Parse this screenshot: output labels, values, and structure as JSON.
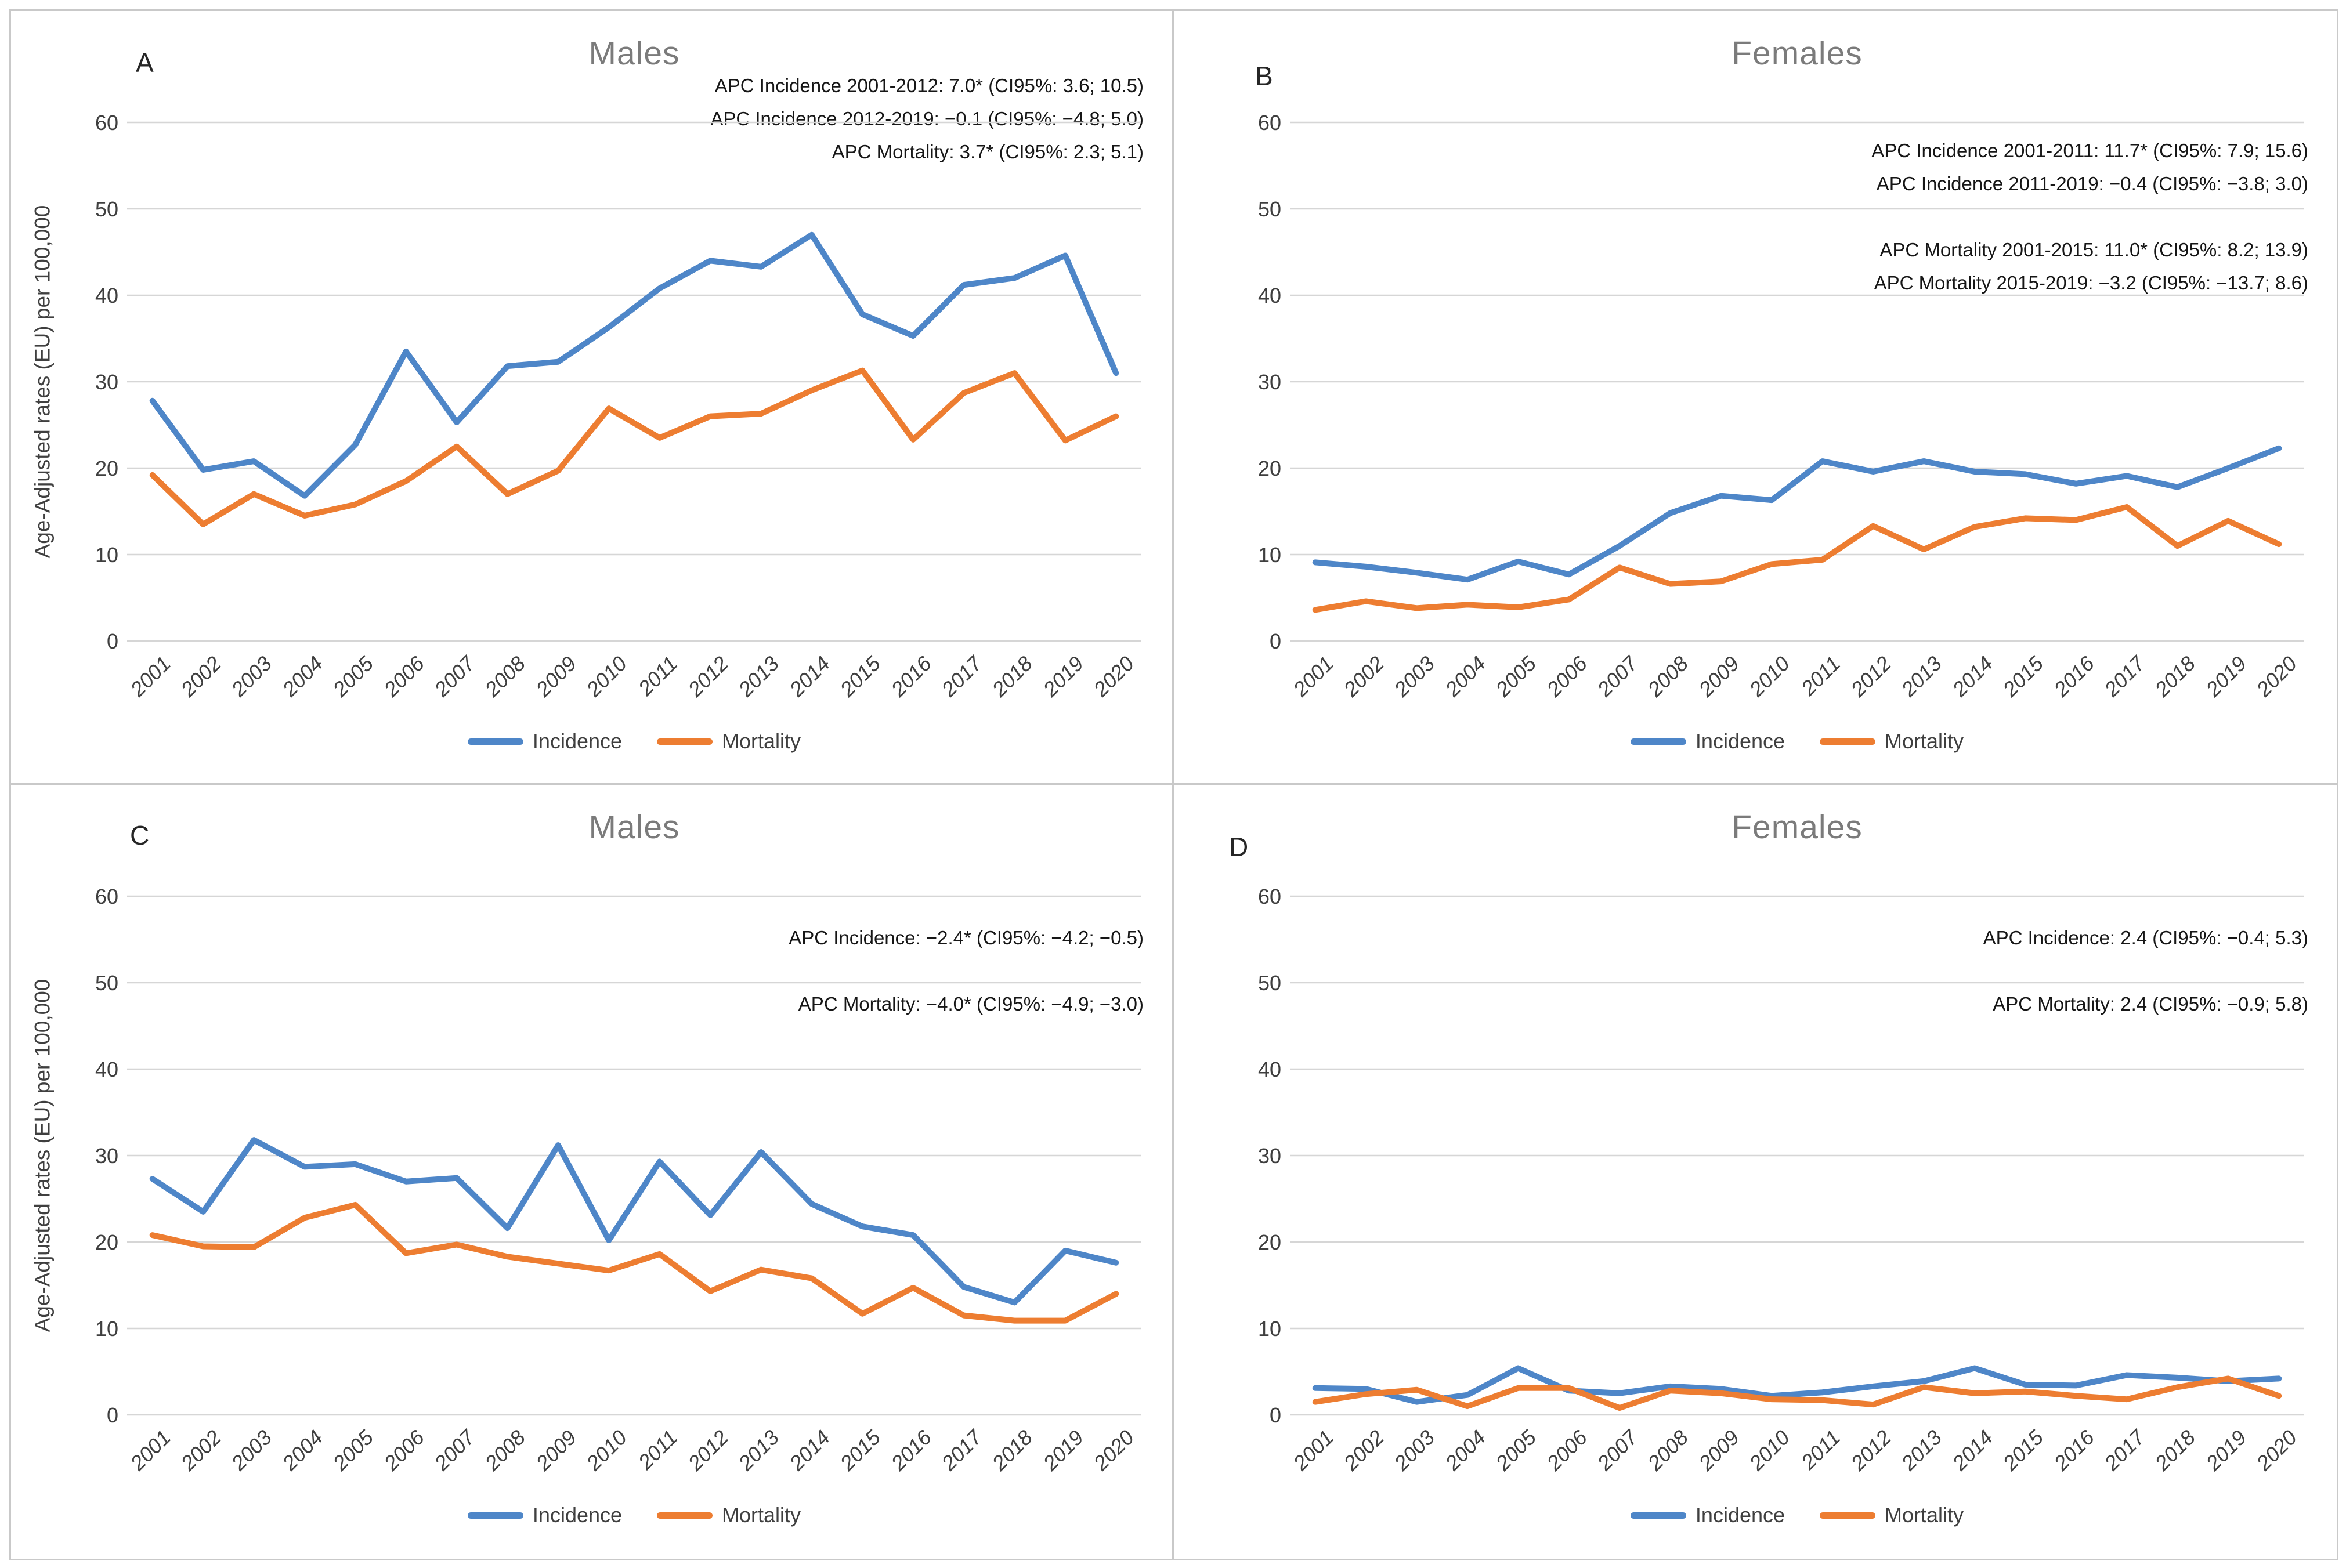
{
  "figure": {
    "y_axis_label": "Age-Adjusted rates (EU) per 100,000",
    "legend": {
      "incidence_label": "Incidence",
      "mortality_label": "Mortality"
    },
    "colors": {
      "incidence": "#4e86c8",
      "mortality": "#ed7d31",
      "gridline": "#d6d6d6",
      "panel_border": "#c9c9c9",
      "title_text": "#7b7b7b",
      "axis_text": "#3f3f3f",
      "annotation_text": "#161616"
    }
  },
  "chart_data": [
    {
      "panel": "A",
      "title": "Males",
      "type": "line",
      "grid": "horizontal",
      "legend_position": "bottom",
      "show_y_axis_title": true,
      "ylim": [
        0,
        60
      ],
      "yticks": [
        0,
        10,
        20,
        30,
        40,
        50,
        60
      ],
      "categories": [
        "2001",
        "2002",
        "2003",
        "2004",
        "2005",
        "2006",
        "2007",
        "2008",
        "2009",
        "2010",
        "2011",
        "2012",
        "2013",
        "2014",
        "2015",
        "2016",
        "2017",
        "2018",
        "2019",
        "2020"
      ],
      "annotations": [
        "APC Incidence 2001-2012: 7.0* (CI95%: 3.6; 10.5)",
        "APC Incidence 2012-2019: −0.1 (CI95%: −4.8; 5.0)",
        "APC Mortality: 3.7* (CI95%: 2.3; 5.1)"
      ],
      "series": [
        {
          "name": "Incidence",
          "color_key": "incidence",
          "values": [
            27.8,
            19.8,
            20.8,
            16.8,
            22.7,
            33.5,
            25.3,
            31.8,
            32.3,
            36.3,
            40.8,
            44.0,
            43.3,
            47.0,
            37.8,
            35.3,
            41.2,
            42.0,
            44.6,
            31.0
          ]
        },
        {
          "name": "Mortality",
          "color_key": "mortality",
          "values": [
            19.2,
            13.5,
            17.0,
            14.5,
            15.8,
            18.5,
            22.5,
            17.0,
            19.7,
            26.9,
            23.5,
            26.0,
            26.3,
            29.0,
            31.3,
            23.3,
            28.7,
            31.0,
            23.2,
            26.0
          ]
        }
      ]
    },
    {
      "panel": "B",
      "title": "Females",
      "type": "line",
      "grid": "horizontal",
      "legend_position": "bottom",
      "show_y_axis_title": false,
      "ylim": [
        0,
        60
      ],
      "yticks": [
        0,
        10,
        20,
        30,
        40,
        50,
        60
      ],
      "categories": [
        "2001",
        "2002",
        "2003",
        "2004",
        "2005",
        "2006",
        "2007",
        "2008",
        "2009",
        "2010",
        "2011",
        "2012",
        "2013",
        "2014",
        "2015",
        "2016",
        "2017",
        "2018",
        "2019",
        "2020"
      ],
      "annotations": [
        "APC Incidence 2001-2011: 11.7* (CI95%: 7.9; 15.6)",
        "APC Incidence 2011-2019: −0.4 (CI95%: −3.8; 3.0)",
        "",
        "APC Mortality 2001-2015: 11.0* (CI95%: 8.2; 13.9)",
        "APC Mortality 2015-2019: −3.2 (CI95%: −13.7; 8.6)"
      ],
      "series": [
        {
          "name": "Incidence",
          "color_key": "incidence",
          "values": [
            9.1,
            8.6,
            7.9,
            7.1,
            9.2,
            7.7,
            11.0,
            14.8,
            16.8,
            16.3,
            20.8,
            19.6,
            20.8,
            19.6,
            19.3,
            18.2,
            19.1,
            17.8,
            20.0,
            22.3
          ]
        },
        {
          "name": "Mortality",
          "color_key": "mortality",
          "values": [
            3.6,
            4.6,
            3.8,
            4.2,
            3.9,
            4.8,
            8.5,
            6.6,
            6.9,
            8.9,
            9.4,
            13.3,
            10.6,
            13.2,
            14.2,
            14.0,
            15.5,
            11.0,
            13.9,
            11.2
          ]
        }
      ]
    },
    {
      "panel": "C",
      "title": "Males",
      "type": "line",
      "grid": "horizontal",
      "legend_position": "bottom",
      "show_y_axis_title": true,
      "ylim": [
        0,
        60
      ],
      "yticks": [
        0,
        10,
        20,
        30,
        40,
        50,
        60
      ],
      "categories": [
        "2001",
        "2002",
        "2003",
        "2004",
        "2005",
        "2006",
        "2007",
        "2008",
        "2009",
        "2010",
        "2011",
        "2012",
        "2013",
        "2014",
        "2015",
        "2016",
        "2017",
        "2018",
        "2019",
        "2020"
      ],
      "annotations": [
        "APC Incidence: −2.4* (CI95%: −4.2; −0.5)",
        "",
        "APC Mortality: −4.0* (CI95%: −4.9; −3.0)"
      ],
      "series": [
        {
          "name": "Incidence",
          "color_key": "incidence",
          "values": [
            27.3,
            23.5,
            31.8,
            28.7,
            29.0,
            27.0,
            27.4,
            21.6,
            31.2,
            20.2,
            29.3,
            23.1,
            30.4,
            24.4,
            21.8,
            20.8,
            14.8,
            13.0,
            19.0,
            17.6
          ]
        },
        {
          "name": "Mortality",
          "color_key": "mortality",
          "values": [
            20.8,
            19.5,
            19.4,
            22.8,
            24.3,
            18.7,
            19.7,
            18.3,
            17.5,
            16.7,
            18.6,
            14.3,
            16.8,
            15.8,
            11.7,
            14.7,
            11.5,
            10.9,
            10.9,
            14.0
          ]
        }
      ]
    },
    {
      "panel": "D",
      "title": "Females",
      "type": "line",
      "grid": "horizontal",
      "legend_position": "bottom",
      "show_y_axis_title": false,
      "ylim": [
        0,
        60
      ],
      "yticks": [
        0,
        10,
        20,
        30,
        40,
        50,
        60
      ],
      "categories": [
        "2001",
        "2002",
        "2003",
        "2004",
        "2005",
        "2006",
        "2007",
        "2008",
        "2009",
        "2010",
        "2011",
        "2012",
        "2013",
        "2014",
        "2015",
        "2016",
        "2017",
        "2018",
        "2019",
        "2020"
      ],
      "annotations": [
        "APC Incidence: 2.4 (CI95%: −0.4; 5.3)",
        "",
        "APC Mortality: 2.4 (CI95%: −0.9; 5.8)"
      ],
      "series": [
        {
          "name": "Incidence",
          "color_key": "incidence",
          "values": [
            3.1,
            3.0,
            1.5,
            2.3,
            5.4,
            2.8,
            2.5,
            3.3,
            3.0,
            2.2,
            2.6,
            3.3,
            3.9,
            5.4,
            3.5,
            3.4,
            4.6,
            4.3,
            3.9,
            4.2
          ]
        },
        {
          "name": "Mortality",
          "color_key": "mortality",
          "values": [
            1.5,
            2.4,
            2.9,
            1.0,
            3.1,
            3.1,
            0.8,
            2.8,
            2.5,
            1.8,
            1.7,
            1.2,
            3.2,
            2.5,
            2.7,
            2.2,
            1.8,
            3.2,
            4.2,
            2.2
          ]
        }
      ]
    }
  ]
}
